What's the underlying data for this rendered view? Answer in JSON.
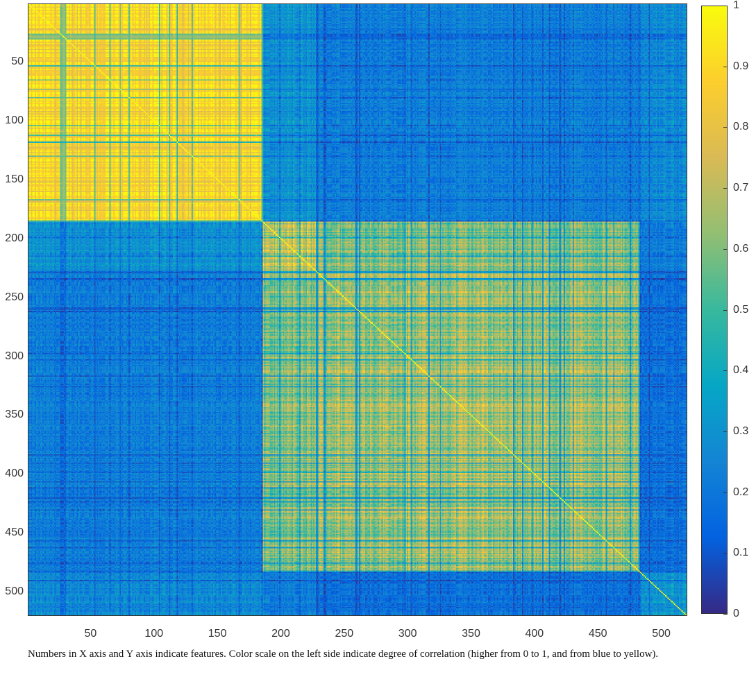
{
  "chart_data": {
    "type": "heatmap",
    "title": "",
    "xlabel": "",
    "ylabel": "",
    "n_features": 520,
    "xlim": [
      0.5,
      520.5
    ],
    "ylim": [
      0.5,
      520.5
    ],
    "x_ticks": [
      50,
      100,
      150,
      200,
      250,
      300,
      350,
      400,
      450,
      500
    ],
    "y_ticks": [
      50,
      100,
      150,
      200,
      250,
      300,
      350,
      400,
      450,
      500
    ],
    "colorbar": {
      "range": [
        0,
        1
      ],
      "ticks": [
        "0",
        "0.1",
        "0.2",
        "0.3",
        "0.4",
        "0.5",
        "0.6",
        "0.7",
        "0.8",
        "0.9",
        "1"
      ],
      "colormap": "parula"
    },
    "colormap_stops": [
      "#352a87",
      "#0363e1",
      "#1485d4",
      "#06a7c6",
      "#38b99e",
      "#92bf73",
      "#d9ba56",
      "#fcce2e",
      "#f9fb0e"
    ],
    "clusters": [
      {
        "features": [
          1,
          185
        ]
      },
      {
        "features": [
          186,
          228
        ]
      },
      {
        "features": [
          229,
          483
        ]
      },
      {
        "features": [
          484,
          520
        ]
      }
    ],
    "block_mean_correlation": [
      [
        0.93,
        0.33,
        0.25,
        0.3
      ],
      [
        0.33,
        0.8,
        0.68,
        0.25
      ],
      [
        0.25,
        0.68,
        0.74,
        0.2
      ],
      [
        0.3,
        0.25,
        0.2,
        0.35
      ]
    ],
    "grid": false
  },
  "caption": "Numbers in X axis and Y axis indicate features. Color scale on the left side indicate degree of correlation (higher from 0 to 1, and from blue to yellow)."
}
